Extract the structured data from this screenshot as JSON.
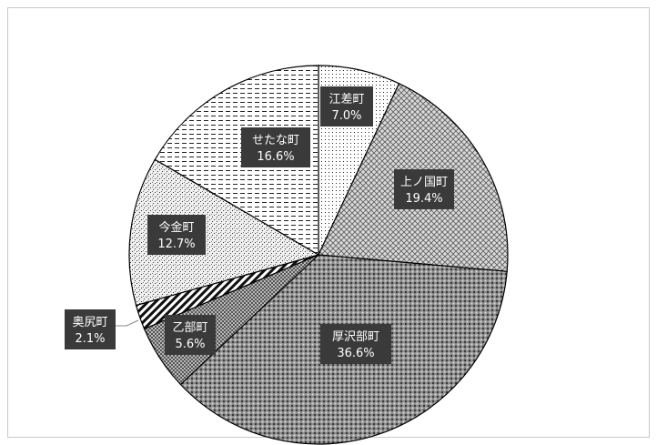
{
  "chart_data": {
    "type": "pie",
    "start_angle": "top",
    "direction": "clockwise",
    "slices": [
      {
        "name": "江差町",
        "pct_label": "7.0%",
        "value": 7.0,
        "fill": "#f2f2f2",
        "pattern": "fine-dots"
      },
      {
        "name": "上ノ国町",
        "pct_label": "19.4%",
        "value": 19.4,
        "fill": "#c8c8c8",
        "pattern": "diamond-grid"
      },
      {
        "name": "厚沢部町",
        "pct_label": "36.6%",
        "value": 36.6,
        "fill": "#7a7a7a",
        "pattern": "dense-grid"
      },
      {
        "name": "乙部町",
        "pct_label": "5.6%",
        "value": 5.6,
        "fill": "#9a9a9a",
        "pattern": "checker"
      },
      {
        "name": "奥尻町",
        "pct_label": "2.1%",
        "value": 2.1,
        "fill": "#ffffff",
        "pattern": "diagonal-stripes"
      },
      {
        "name": "今金町",
        "pct_label": "12.7%",
        "value": 12.7,
        "fill": "#e6e6e6",
        "pattern": "speckle"
      },
      {
        "name": "せたな町",
        "pct_label": "16.6%",
        "value": 16.6,
        "fill": "#ffffff",
        "pattern": "dashed-horizontal"
      }
    ],
    "label_style": {
      "box_color": "#3a3a3a",
      "text_color": "#ffffff"
    }
  }
}
